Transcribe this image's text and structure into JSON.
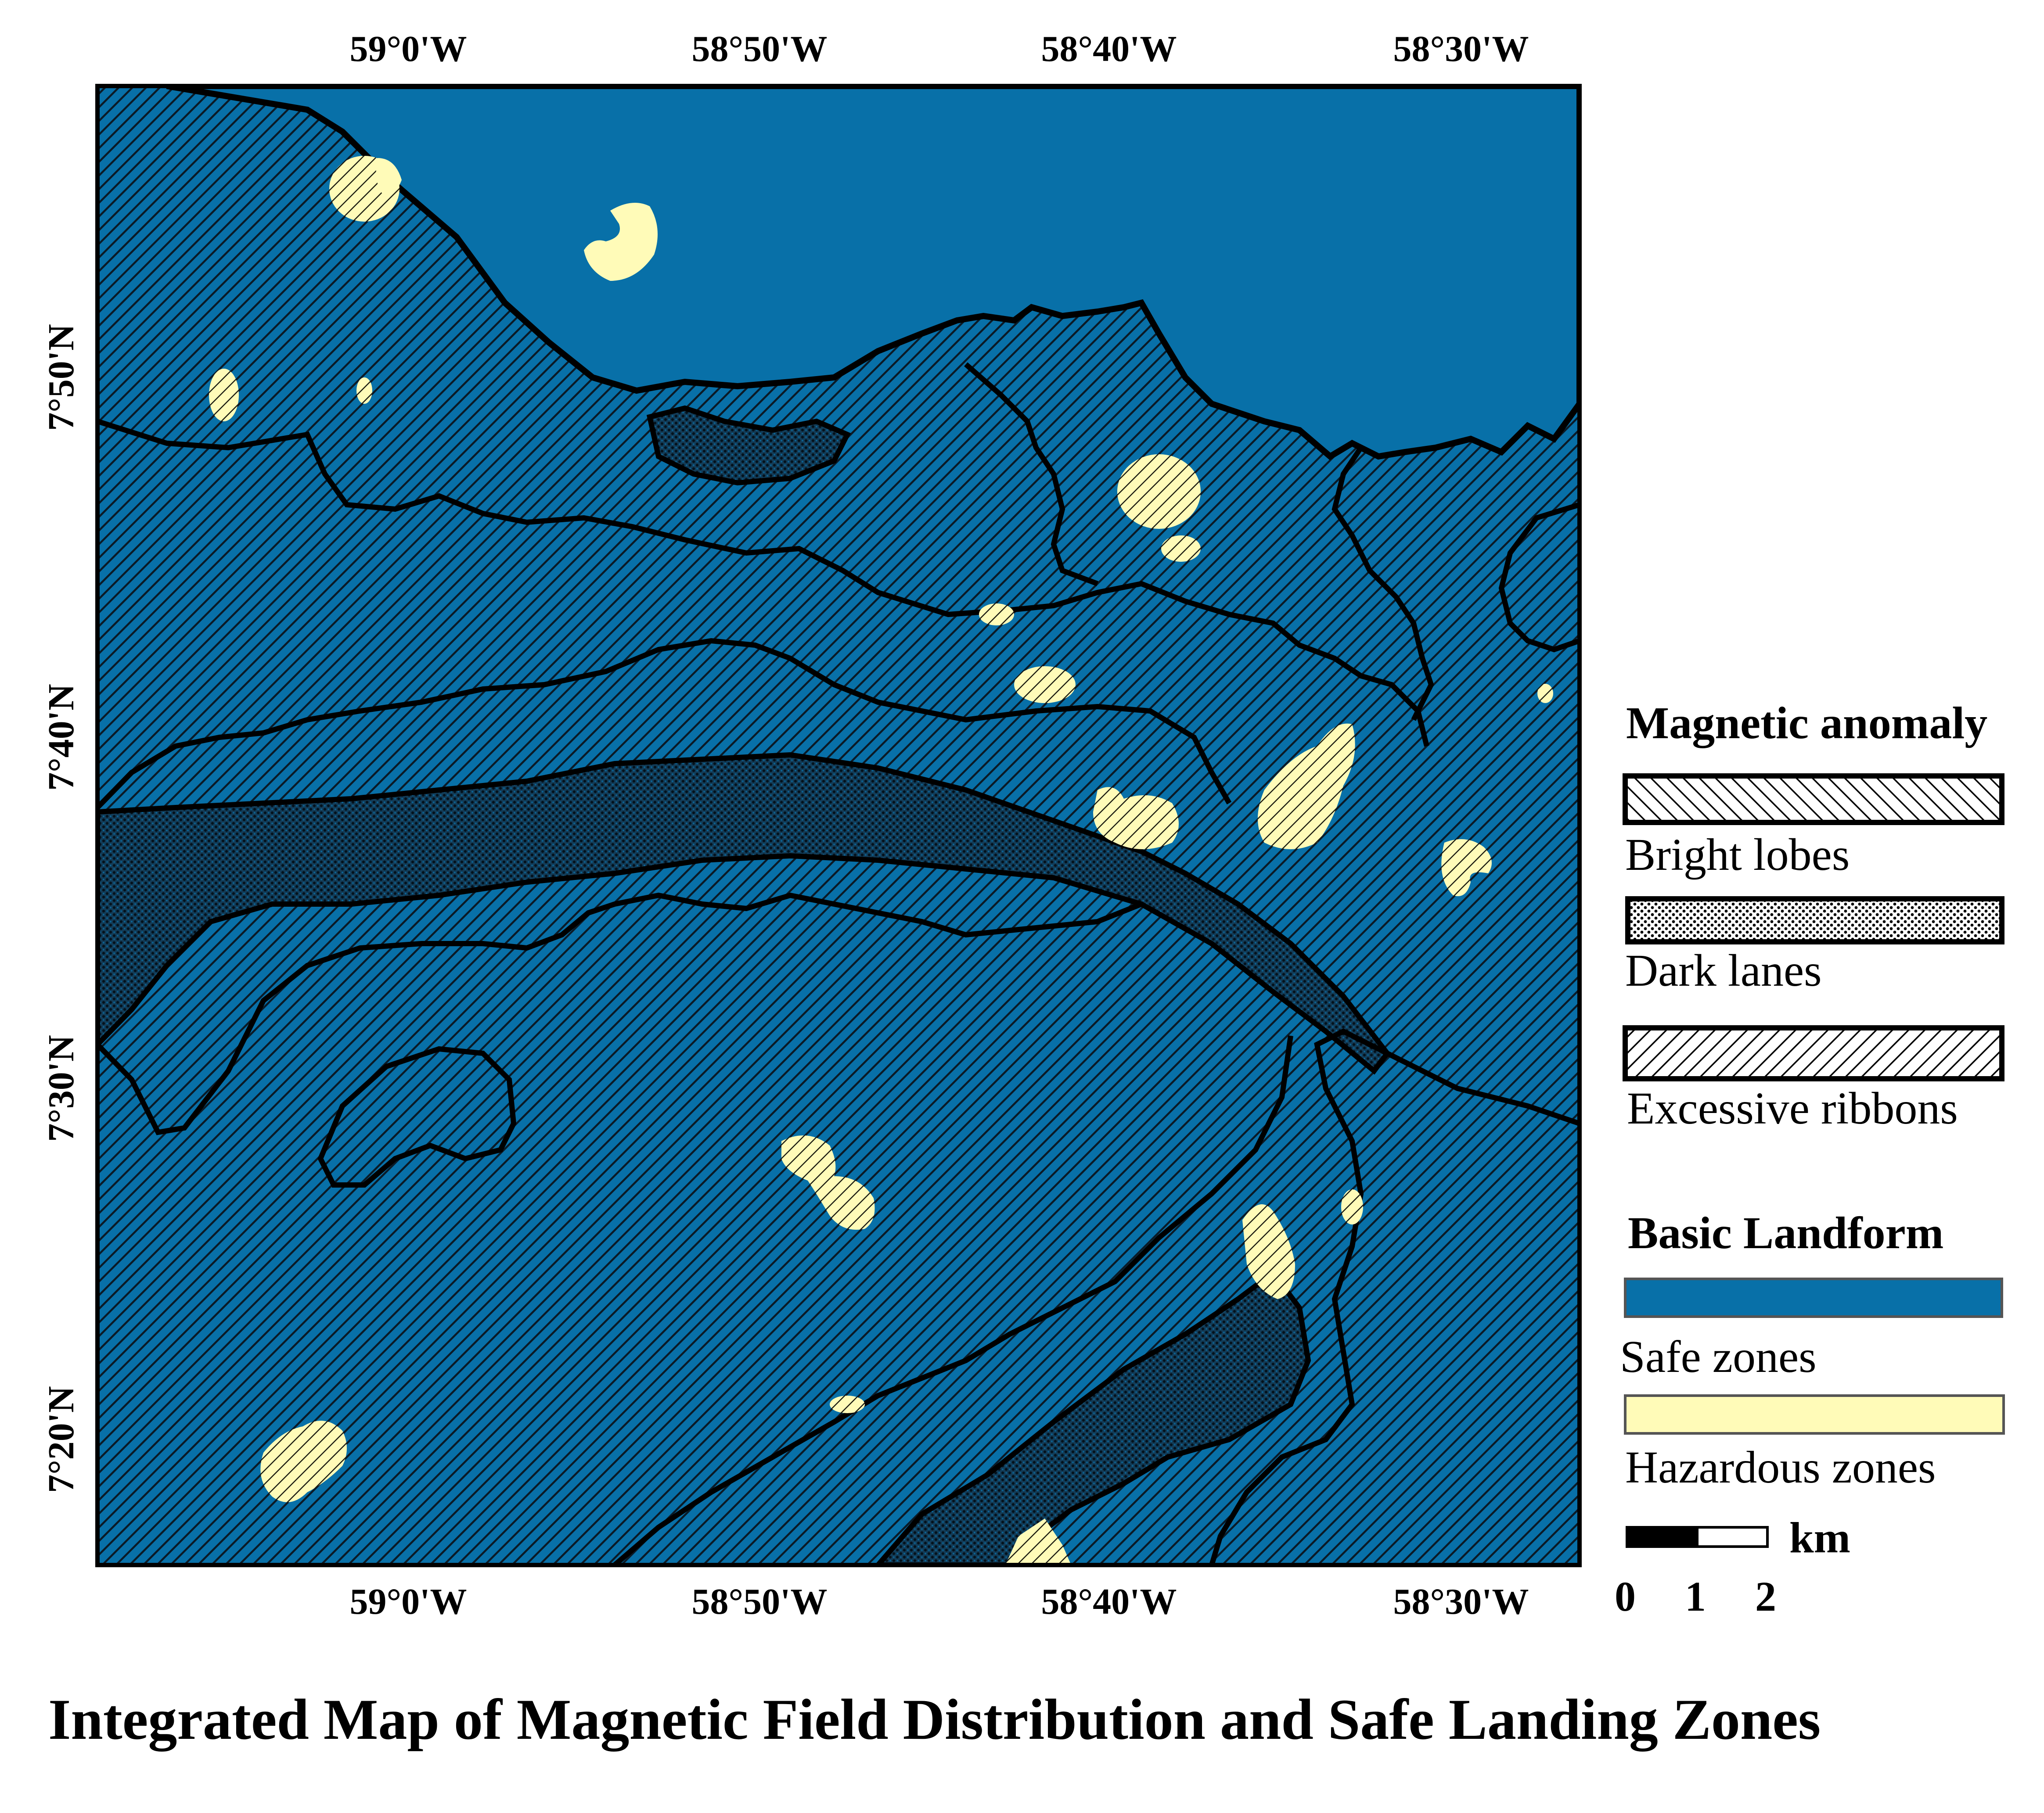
{
  "map": {
    "title": "Integrated Map of Magnetic Field Distribution and Safe Landing Zones",
    "longitude_labels": [
      "59°0'W",
      "58°50'W",
      "58°40'W",
      "58°30'W"
    ],
    "latitude_labels": [
      "7°50'N",
      "7°40'N",
      "7°30'N",
      "7°20'N"
    ]
  },
  "legend": {
    "magnetic_heading": "Magnetic anomaly",
    "magnetic_items": [
      {
        "label": "Bright lobes",
        "pattern": "diagonal-hatch"
      },
      {
        "label": "Dark lanes",
        "pattern": "dense-dots"
      },
      {
        "label": "Excessive ribbons",
        "pattern": "back-diagonal-hatch"
      }
    ],
    "landform_heading": "Basic Landform",
    "landform_items": [
      {
        "label": "Safe zones",
        "color": "#0870A8"
      },
      {
        "label": "Hazardous zones",
        "color": "#FFFBB8"
      }
    ]
  },
  "scale_bar": {
    "unit": "km",
    "ticks": [
      "0",
      "1",
      "2"
    ]
  },
  "colors": {
    "safe": "#0870A8",
    "hazard": "#FFFBB8",
    "outline": "#000000"
  }
}
